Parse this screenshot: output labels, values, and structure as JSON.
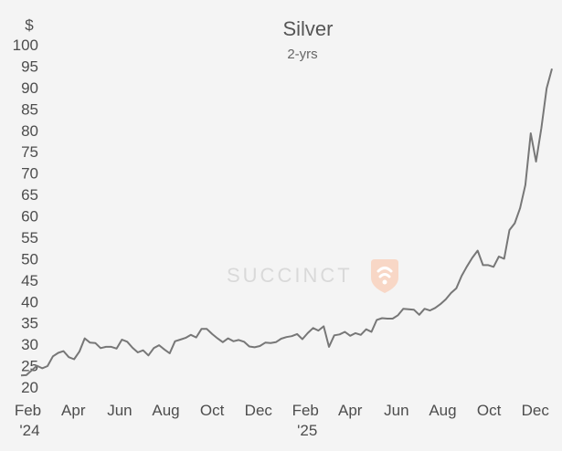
{
  "chart_data": {
    "type": "line",
    "title": "Silver",
    "subtitle": "2-yrs",
    "ylabel": "$",
    "xlabel": "",
    "ylim": [
      20,
      100
    ],
    "yticks": [
      20,
      25,
      30,
      35,
      40,
      45,
      50,
      55,
      60,
      65,
      70,
      75,
      80,
      85,
      90,
      95,
      100
    ],
    "xticks": [
      {
        "label": "Feb",
        "sublabel": "'24",
        "date": "2024-02-01"
      },
      {
        "label": "Apr",
        "sublabel": "",
        "date": "2024-04-01"
      },
      {
        "label": "Jun",
        "sublabel": "",
        "date": "2024-06-01"
      },
      {
        "label": "Aug",
        "sublabel": "",
        "date": "2024-08-01"
      },
      {
        "label": "Oct",
        "sublabel": "",
        "date": "2024-10-01"
      },
      {
        "label": "Dec",
        "sublabel": "",
        "date": "2024-12-01"
      },
      {
        "label": "Feb",
        "sublabel": "'25",
        "date": "2025-02-01"
      },
      {
        "label": "Apr",
        "sublabel": "",
        "date": "2025-04-01"
      },
      {
        "label": "Jun",
        "sublabel": "",
        "date": "2025-06-01"
      },
      {
        "label": "Aug",
        "sublabel": "",
        "date": "2025-08-01"
      },
      {
        "label": "Oct",
        "sublabel": "",
        "date": "2025-10-01"
      },
      {
        "label": "Dec",
        "sublabel": "",
        "date": "2025-12-01"
      }
    ],
    "grid": false,
    "legend": "none",
    "line_color": "#777777",
    "watermark": "SUCCINCT",
    "watermark_color": "#f6c7b0",
    "series": [
      {
        "points": [
          [
            "2024-01-23",
            22.7
          ],
          [
            "2024-01-30",
            22.8
          ],
          [
            "2024-02-06",
            23.9
          ],
          [
            "2024-02-13",
            25.0
          ],
          [
            "2024-02-20",
            24.4
          ],
          [
            "2024-02-27",
            24.9
          ],
          [
            "2024-03-05",
            27.2
          ],
          [
            "2024-03-12",
            28.0
          ],
          [
            "2024-03-19",
            28.4
          ],
          [
            "2024-03-26",
            27.0
          ],
          [
            "2024-04-02",
            26.5
          ],
          [
            "2024-04-09",
            28.3
          ],
          [
            "2024-04-16",
            31.4
          ],
          [
            "2024-04-23",
            30.4
          ],
          [
            "2024-04-30",
            30.3
          ],
          [
            "2024-05-07",
            29.1
          ],
          [
            "2024-05-14",
            29.4
          ],
          [
            "2024-05-21",
            29.4
          ],
          [
            "2024-05-28",
            29.0
          ],
          [
            "2024-06-04",
            31.1
          ],
          [
            "2024-06-11",
            30.6
          ],
          [
            "2024-06-18",
            29.2
          ],
          [
            "2024-06-25",
            28.1
          ],
          [
            "2024-07-02",
            28.6
          ],
          [
            "2024-07-09",
            27.4
          ],
          [
            "2024-07-16",
            29.1
          ],
          [
            "2024-07-23",
            29.8
          ],
          [
            "2024-07-30",
            28.8
          ],
          [
            "2024-08-06",
            27.9
          ],
          [
            "2024-08-13",
            30.7
          ],
          [
            "2024-08-20",
            31.1
          ],
          [
            "2024-08-27",
            31.5
          ],
          [
            "2024-09-03",
            32.2
          ],
          [
            "2024-09-10",
            31.6
          ],
          [
            "2024-09-17",
            33.6
          ],
          [
            "2024-09-24",
            33.6
          ],
          [
            "2024-10-01",
            32.4
          ],
          [
            "2024-10-08",
            31.4
          ],
          [
            "2024-10-15",
            30.5
          ],
          [
            "2024-10-22",
            31.4
          ],
          [
            "2024-10-29",
            30.7
          ],
          [
            "2024-11-05",
            31.0
          ],
          [
            "2024-11-12",
            30.6
          ],
          [
            "2024-11-19",
            29.5
          ],
          [
            "2024-11-26",
            29.3
          ],
          [
            "2024-12-03",
            29.6
          ],
          [
            "2024-12-10",
            30.4
          ],
          [
            "2024-12-17",
            30.3
          ],
          [
            "2024-12-24",
            30.5
          ],
          [
            "2024-12-31",
            31.3
          ],
          [
            "2025-01-07",
            31.7
          ],
          [
            "2025-01-14",
            31.9
          ],
          [
            "2025-01-21",
            32.4
          ],
          [
            "2025-01-28",
            31.2
          ],
          [
            "2025-02-04",
            32.6
          ],
          [
            "2025-02-11",
            33.8
          ],
          [
            "2025-02-18",
            33.2
          ],
          [
            "2025-02-25",
            34.2
          ],
          [
            "2025-03-04",
            29.4
          ],
          [
            "2025-03-11",
            32.1
          ],
          [
            "2025-03-18",
            32.3
          ],
          [
            "2025-03-25",
            32.9
          ],
          [
            "2025-04-01",
            32.0
          ],
          [
            "2025-04-08",
            32.6
          ],
          [
            "2025-04-15",
            32.2
          ],
          [
            "2025-04-22",
            33.5
          ],
          [
            "2025-04-29",
            32.9
          ],
          [
            "2025-05-06",
            35.7
          ],
          [
            "2025-05-13",
            36.1
          ],
          [
            "2025-05-20",
            36.0
          ],
          [
            "2025-05-27",
            36.0
          ],
          [
            "2025-06-03",
            36.8
          ],
          [
            "2025-06-10",
            38.3
          ],
          [
            "2025-06-17",
            38.2
          ],
          [
            "2025-06-24",
            38.1
          ],
          [
            "2025-07-01",
            36.9
          ],
          [
            "2025-07-08",
            38.3
          ],
          [
            "2025-07-15",
            37.9
          ],
          [
            "2025-07-22",
            38.5
          ],
          [
            "2025-07-29",
            39.4
          ],
          [
            "2025-08-05",
            40.5
          ],
          [
            "2025-08-12",
            42.0
          ],
          [
            "2025-08-19",
            43.1
          ],
          [
            "2025-08-26",
            46.0
          ],
          [
            "2025-09-02",
            48.2
          ],
          [
            "2025-09-09",
            50.2
          ],
          [
            "2025-09-16",
            51.9
          ],
          [
            "2025-09-23",
            48.5
          ],
          [
            "2025-09-30",
            48.5
          ],
          [
            "2025-10-07",
            48.1
          ],
          [
            "2025-10-14",
            50.5
          ],
          [
            "2025-10-21",
            50.0
          ],
          [
            "2025-10-28",
            56.7
          ],
          [
            "2025-11-04",
            58.3
          ],
          [
            "2025-11-11",
            61.8
          ],
          [
            "2025-11-18",
            67.2
          ],
          [
            "2025-11-25",
            79.3
          ],
          [
            "2025-12-02",
            72.7
          ],
          [
            "2025-12-09",
            80.5
          ],
          [
            "2025-12-16",
            89.8
          ],
          [
            "2025-12-23",
            94.4
          ]
        ]
      }
    ]
  }
}
